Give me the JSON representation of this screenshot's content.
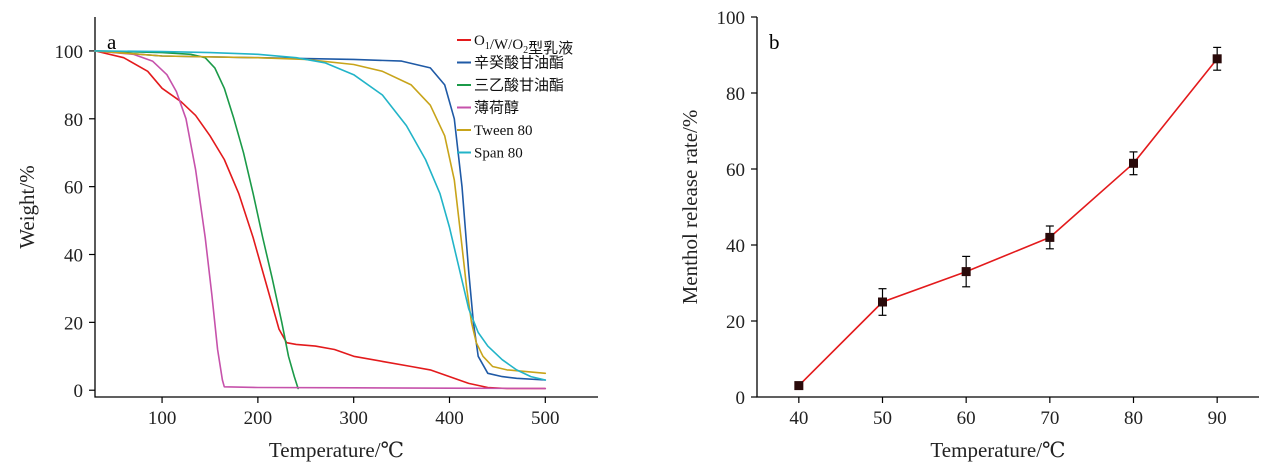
{
  "chart_data": [
    {
      "type": "line",
      "panel_label": "a",
      "xlabel": "Temperature/℃",
      "ylabel": "Weight/%",
      "xlim": [
        30,
        555
      ],
      "ylim": [
        -2,
        110
      ],
      "xticks": [
        100,
        200,
        300,
        400,
        500
      ],
      "yticks": [
        0,
        20,
        40,
        60,
        80,
        100
      ],
      "xtick_labels": [
        "100",
        "200",
        "300",
        "400",
        "500"
      ],
      "ytick_labels": [
        "0",
        "20",
        "40",
        "60",
        "80",
        "100"
      ],
      "grid": false,
      "legend_position": "top-right",
      "series": [
        {
          "name": "O1/W/O2型乳液",
          "legend_parts": [
            {
              "text": "O",
              "sub": false
            },
            {
              "text": "1",
              "sub": true
            },
            {
              "text": "/W/O",
              "sub": false
            },
            {
              "text": "2",
              "sub": true
            },
            {
              "text": "型乳液",
              "sub": false
            }
          ],
          "color": "#e31a1c",
          "x": [
            30,
            60,
            85,
            100,
            120,
            135,
            150,
            165,
            180,
            195,
            210,
            222,
            230,
            240,
            260,
            280,
            300,
            330,
            360,
            380,
            400,
            420,
            440,
            460,
            500
          ],
          "y": [
            100,
            98,
            94,
            89,
            85,
            81,
            75,
            68,
            58,
            45,
            30,
            18,
            14,
            13.5,
            13,
            12,
            10,
            8.5,
            7,
            6,
            4,
            2,
            0.8,
            0.5,
            0.5
          ]
        },
        {
          "name": "辛癸酸甘油酯",
          "color": "#1f5aa6",
          "x": [
            30,
            100,
            200,
            300,
            350,
            380,
            395,
            405,
            413,
            420,
            425,
            430,
            440,
            455,
            470,
            500
          ],
          "y": [
            100,
            98.5,
            98,
            97.5,
            97,
            95,
            90,
            80,
            60,
            35,
            20,
            10,
            5,
            4,
            3.5,
            3
          ]
        },
        {
          "name": "三乙酸甘油酯",
          "color": "#1b9a48",
          "x": [
            30,
            100,
            130,
            145,
            155,
            165,
            175,
            185,
            195,
            205,
            215,
            225,
            232,
            238,
            242
          ],
          "y": [
            100,
            99.5,
            99,
            98,
            95,
            89,
            80,
            70,
            58,
            45,
            33,
            20,
            10,
            4,
            0.5
          ]
        },
        {
          "name": "薄荷醇",
          "color": "#c652ab",
          "x": [
            30,
            70,
            90,
            105,
            115,
            125,
            135,
            145,
            152,
            158,
            163,
            165,
            200,
            300,
            400,
            500
          ],
          "y": [
            100,
            99,
            97,
            93,
            88,
            80,
            65,
            45,
            28,
            12,
            3,
            1,
            0.8,
            0.7,
            0.6,
            0.5
          ]
        },
        {
          "name": "Tween 80",
          "color": "#c8a41a",
          "x": [
            30,
            100,
            200,
            250,
            300,
            330,
            360,
            380,
            395,
            405,
            412,
            418,
            423,
            428,
            435,
            445,
            460,
            480,
            500
          ],
          "y": [
            100,
            98.5,
            98,
            97.5,
            96,
            94,
            90,
            84,
            75,
            62,
            45,
            30,
            20,
            14,
            10,
            7,
            6,
            5.5,
            5
          ]
        },
        {
          "name": "Span 80",
          "color": "#22b4c8",
          "x": [
            30,
            100,
            150,
            200,
            240,
            270,
            300,
            330,
            355,
            375,
            390,
            400,
            410,
            420,
            430,
            440,
            455,
            470,
            485,
            500
          ],
          "y": [
            100,
            99.8,
            99.5,
            99,
            98,
            96.5,
            93,
            87,
            78,
            68,
            58,
            48,
            36,
            24,
            17,
            13,
            9,
            6,
            4,
            3
          ]
        }
      ]
    },
    {
      "type": "line",
      "panel_label": "b",
      "xlabel": "Temperature/℃",
      "ylabel": "Menthol release rate/%",
      "xlim": [
        35,
        95
      ],
      "ylim": [
        0,
        100
      ],
      "xticks": [
        40,
        50,
        60,
        70,
        80,
        90
      ],
      "yticks": [
        0,
        20,
        40,
        60,
        80,
        100
      ],
      "xtick_labels": [
        "40",
        "50",
        "60",
        "70",
        "80",
        "90"
      ],
      "ytick_labels": [
        "0",
        "20",
        "40",
        "60",
        "80",
        "100"
      ],
      "grid": false,
      "series": [
        {
          "color": "#e31a1c",
          "marker_color": "#2a0a0a",
          "x": [
            40,
            50,
            60,
            70,
            80,
            90
          ],
          "y": [
            3,
            25,
            33,
            42,
            61.5,
            89
          ],
          "error": [
            0.5,
            3.5,
            4,
            3,
            3,
            3
          ]
        }
      ]
    }
  ]
}
